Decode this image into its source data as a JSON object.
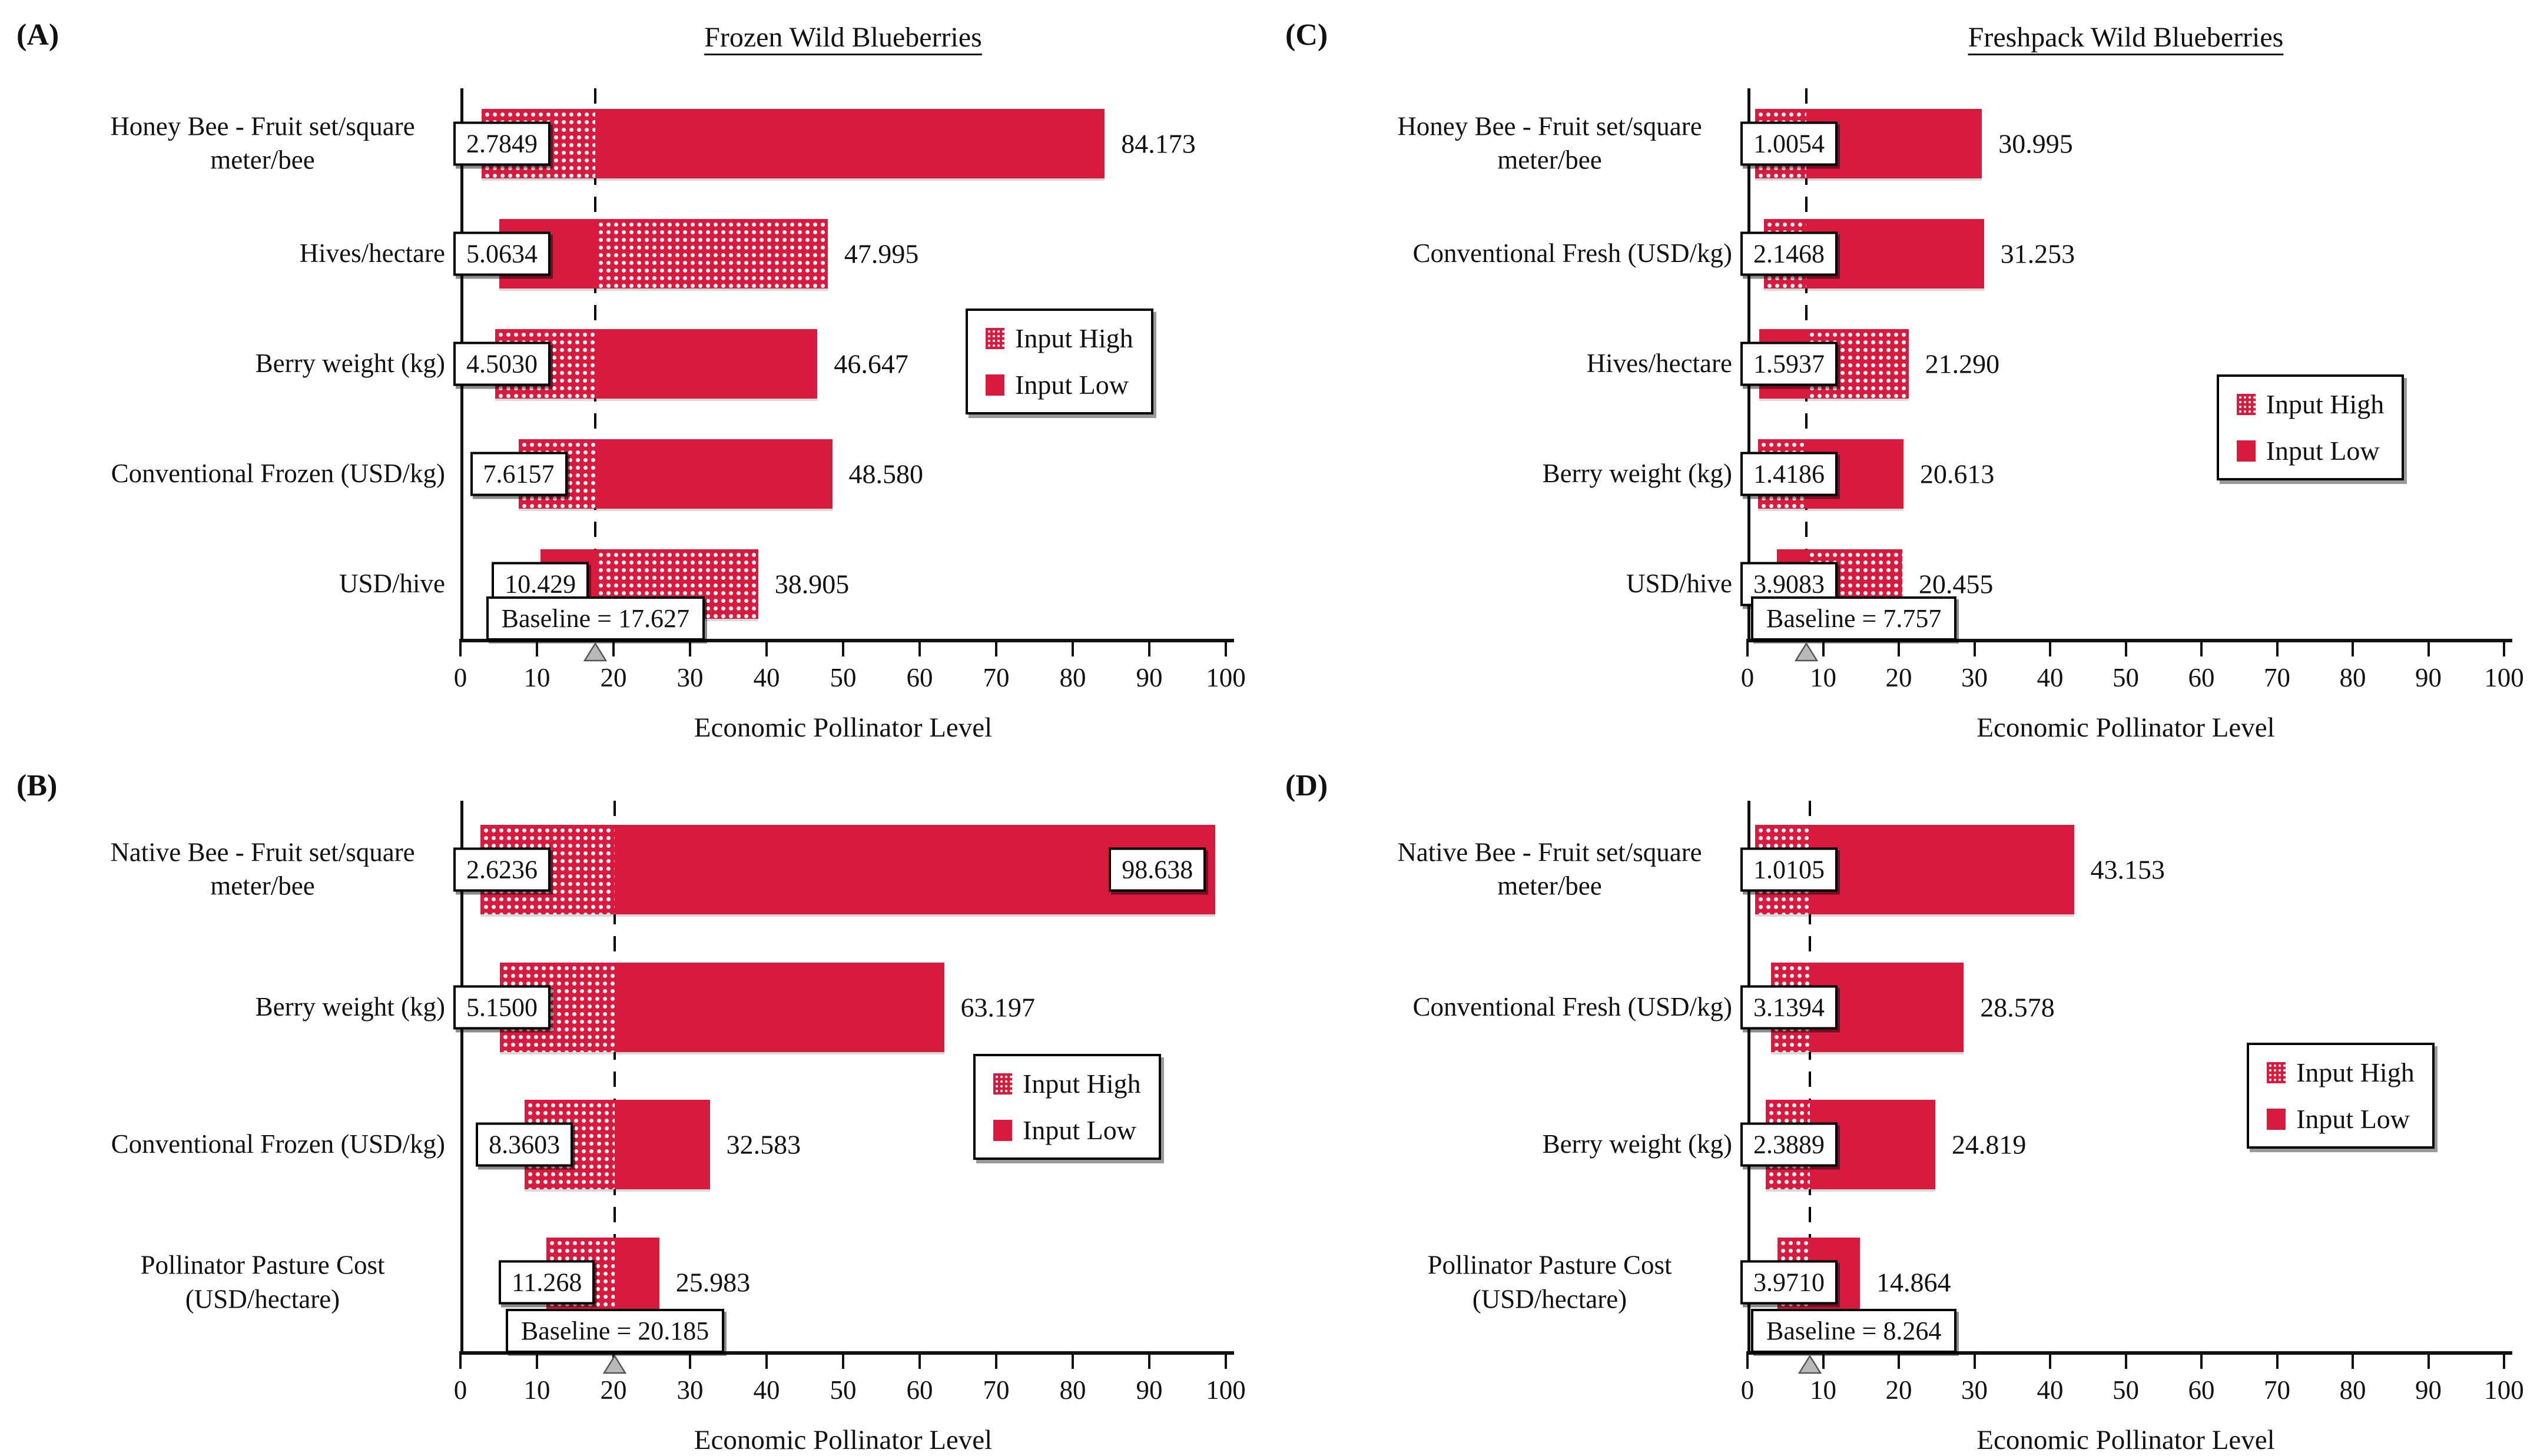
{
  "figure": {
    "background": "#ffffff",
    "x_axis_title": "Economic Pollinator Level",
    "legend": {
      "input_high": "Input High",
      "input_low": "Input Low"
    },
    "colors": {
      "bar_red": "#D91A3F",
      "dot_pattern": "#ffffff",
      "axis": "#111111",
      "box_border": "#000000",
      "box_background": "#ffffff",
      "baseline_triangle": "#b9b9b9"
    }
  },
  "chart_data": [
    {
      "type": "bar",
      "subtype": "tornado",
      "panel_letter": "(A)",
      "title": "Frozen Wild Blueberries",
      "xlabel": "Economic Pollinator Level",
      "xlim": [
        0,
        100
      ],
      "xticks": [
        0,
        10,
        20,
        30,
        40,
        50,
        60,
        70,
        80,
        90,
        100
      ],
      "grid": false,
      "baseline": 17.627,
      "baseline_label": "Baseline = 17.627",
      "legend_entries": [
        "Input High",
        "Input Low"
      ],
      "legend_pos_pct": {
        "left": 66,
        "top": 40
      },
      "rows": [
        {
          "category": "Honey Bee - Fruit set/square meter/bee",
          "left_value": 2.7849,
          "left_label": "2.7849",
          "right_value": 84.173,
          "right_label": "84.173",
          "dotted_side": "left",
          "input_high": 2.7849,
          "input_low": 84.173,
          "right_label_boxed": false
        },
        {
          "category": "Hives/hectare",
          "left_value": 5.0634,
          "left_label": "5.0634",
          "right_value": 47.995,
          "right_label": "47.995",
          "dotted_side": "right",
          "input_high": 47.995,
          "input_low": 5.0634,
          "right_label_boxed": false
        },
        {
          "category": "Berry weight (kg)",
          "left_value": 4.503,
          "left_label": "4.5030",
          "right_value": 46.647,
          "right_label": "46.647",
          "dotted_side": "left",
          "input_high": 4.503,
          "input_low": 46.647,
          "right_label_boxed": false
        },
        {
          "category": "Conventional Frozen (USD/kg)",
          "left_value": 7.6157,
          "left_label": "7.6157",
          "right_value": 48.58,
          "right_label": "48.580",
          "dotted_side": "left",
          "input_high": 7.6157,
          "input_low": 48.58,
          "right_label_boxed": false
        },
        {
          "category": "USD/hive",
          "left_value": 10.429,
          "left_label": "10.429",
          "right_value": 38.905,
          "right_label": "38.905",
          "dotted_side": "right",
          "input_high": 38.905,
          "input_low": 10.429,
          "right_label_boxed": false
        }
      ]
    },
    {
      "type": "bar",
      "subtype": "tornado",
      "panel_letter": "(C)",
      "title": "Freshpack Wild Blueberries",
      "xlabel": "Economic Pollinator Level",
      "xlim": [
        0,
        100
      ],
      "xticks": [
        0,
        10,
        20,
        30,
        40,
        50,
        60,
        70,
        80,
        90,
        100
      ],
      "grid": false,
      "baseline": 7.757,
      "baseline_label": "Baseline = 7.757",
      "legend_entries": [
        "Input High",
        "Input Low"
      ],
      "legend_pos_pct": {
        "left": 62,
        "top": 52
      },
      "rows": [
        {
          "category": "Honey Bee - Fruit set/square meter/bee",
          "left_value": 1.0054,
          "left_label": "1.0054",
          "right_value": 30.995,
          "right_label": "30.995",
          "dotted_side": "left",
          "input_high": 1.0054,
          "input_low": 30.995,
          "right_label_boxed": false
        },
        {
          "category": "Conventional Fresh (USD/kg)",
          "left_value": 2.1468,
          "left_label": "2.1468",
          "right_value": 31.253,
          "right_label": "31.253",
          "dotted_side": "left",
          "input_high": 2.1468,
          "input_low": 31.253,
          "right_label_boxed": false
        },
        {
          "category": "Hives/hectare",
          "left_value": 1.5937,
          "left_label": "1.5937",
          "right_value": 21.29,
          "right_label": "21.290",
          "dotted_side": "right",
          "input_high": 21.29,
          "input_low": 1.5937,
          "right_label_boxed": false
        },
        {
          "category": "Berry weight (kg)",
          "left_value": 1.4186,
          "left_label": "1.4186",
          "right_value": 20.613,
          "right_label": "20.613",
          "dotted_side": "left",
          "input_high": 1.4186,
          "input_low": 20.613,
          "right_label_boxed": false
        },
        {
          "category": "USD/hive",
          "left_value": 3.9083,
          "left_label": "3.9083",
          "right_value": 20.455,
          "right_label": "20.455",
          "dotted_side": "right",
          "input_high": 20.455,
          "input_low": 3.9083,
          "right_label_boxed": false
        }
      ]
    },
    {
      "type": "bar",
      "subtype": "tornado",
      "panel_letter": "(B)",
      "title": "",
      "xlabel": "Economic Pollinator Level",
      "xlim": [
        0,
        100
      ],
      "xticks": [
        0,
        10,
        20,
        30,
        40,
        50,
        60,
        70,
        80,
        90,
        100
      ],
      "grid": false,
      "baseline": 20.185,
      "baseline_label": "Baseline = 20.185",
      "legend_entries": [
        "Input High",
        "Input Low"
      ],
      "legend_pos_pct": {
        "left": 67,
        "top": 46
      },
      "rows": [
        {
          "category": "Native Bee - Fruit set/square meter/bee",
          "left_value": 2.6236,
          "left_label": "2.6236",
          "right_value": 98.638,
          "right_label": "98.638",
          "dotted_side": "left",
          "input_high": 2.6236,
          "input_low": 98.638,
          "right_label_boxed": true
        },
        {
          "category": "Berry weight (kg)",
          "left_value": 5.15,
          "left_label": "5.1500",
          "right_value": 63.197,
          "right_label": "63.197",
          "dotted_side": "left",
          "input_high": 5.15,
          "input_low": 63.197,
          "right_label_boxed": false
        },
        {
          "category": "Conventional Frozen (USD/kg)",
          "left_value": 8.3603,
          "left_label": "8.3603",
          "right_value": 32.583,
          "right_label": "32.583",
          "dotted_side": "left",
          "input_high": 8.3603,
          "input_low": 32.583,
          "right_label_boxed": false
        },
        {
          "category": "Pollinator Pasture Cost (USD/hectare)",
          "left_value": 11.268,
          "left_label": "11.268",
          "right_value": 25.983,
          "right_label": "25.983",
          "dotted_side": "left",
          "input_high": 11.268,
          "input_low": 25.983,
          "right_label_boxed": false
        }
      ]
    },
    {
      "type": "bar",
      "subtype": "tornado",
      "panel_letter": "(D)",
      "title": "",
      "xlabel": "Economic Pollinator Level",
      "xlim": [
        0,
        100
      ],
      "xticks": [
        0,
        10,
        20,
        30,
        40,
        50,
        60,
        70,
        80,
        90,
        100
      ],
      "grid": false,
      "baseline": 8.264,
      "baseline_label": "Baseline = 8.264",
      "legend_entries": [
        "Input High",
        "Input Low"
      ],
      "legend_pos_pct": {
        "left": 66,
        "top": 44
      },
      "rows": [
        {
          "category": "Native Bee - Fruit set/square meter/bee",
          "left_value": 1.0105,
          "left_label": "1.0105",
          "right_value": 43.153,
          "right_label": "43.153",
          "dotted_side": "left",
          "input_high": 1.0105,
          "input_low": 43.153,
          "right_label_boxed": false
        },
        {
          "category": "Conventional Fresh (USD/kg)",
          "left_value": 3.1394,
          "left_label": "3.1394",
          "right_value": 28.578,
          "right_label": "28.578",
          "dotted_side": "left",
          "input_high": 3.1394,
          "input_low": 28.578,
          "right_label_boxed": false
        },
        {
          "category": "Berry weight (kg)",
          "left_value": 2.3889,
          "left_label": "2.3889",
          "right_value": 24.819,
          "right_label": "24.819",
          "dotted_side": "left",
          "input_high": 2.3889,
          "input_low": 24.819,
          "right_label_boxed": false
        },
        {
          "category": "Pollinator Pasture Cost (USD/hectare)",
          "left_value": 3.971,
          "left_label": "3.9710",
          "right_value": 14.864,
          "right_label": "14.864",
          "dotted_side": "left",
          "input_high": 3.971,
          "input_low": 14.864,
          "right_label_boxed": false
        }
      ]
    }
  ]
}
